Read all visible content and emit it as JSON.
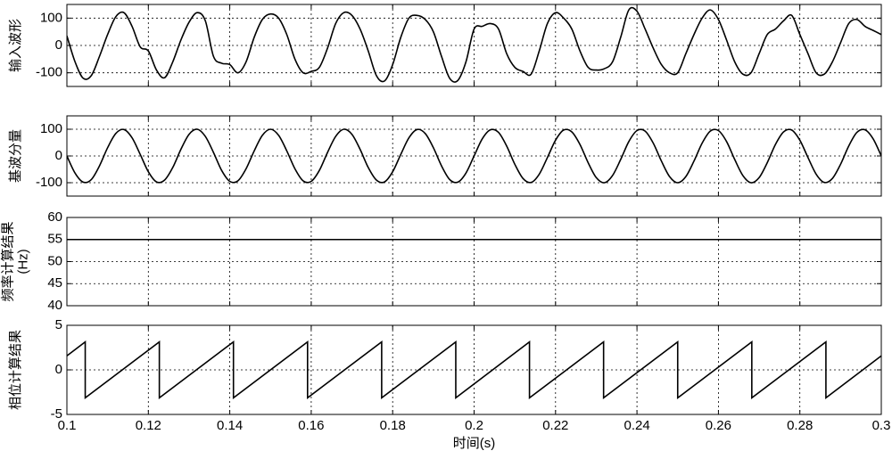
{
  "chart_data": [
    {
      "type": "line",
      "ylabel": [
        "输入波形"
      ],
      "color": "#000000",
      "grid": true,
      "xtick_labels": false,
      "xlim": [
        0.1,
        0.3
      ],
      "xticks": [
        0.1,
        0.12,
        0.14,
        0.16,
        0.18,
        0.2,
        0.22,
        0.24,
        0.26,
        0.28,
        0.3
      ],
      "ylim": [
        -150,
        150
      ],
      "yticks": [
        -100,
        0,
        100
      ],
      "x": [
        0.1,
        0.102,
        0.104,
        0.106,
        0.108,
        0.11,
        0.112,
        0.114,
        0.116,
        0.118,
        0.12,
        0.122,
        0.124,
        0.126,
        0.128,
        0.13,
        0.132,
        0.134,
        0.136,
        0.138,
        0.14,
        0.142,
        0.144,
        0.146,
        0.148,
        0.15,
        0.152,
        0.154,
        0.156,
        0.158,
        0.16,
        0.162,
        0.164,
        0.166,
        0.168,
        0.17,
        0.172,
        0.174,
        0.176,
        0.178,
        0.18,
        0.182,
        0.184,
        0.186,
        0.188,
        0.19,
        0.192,
        0.194,
        0.196,
        0.198,
        0.2,
        0.202,
        0.204,
        0.206,
        0.208,
        0.21,
        0.212,
        0.214,
        0.216,
        0.218,
        0.22,
        0.222,
        0.224,
        0.226,
        0.228,
        0.23,
        0.232,
        0.234,
        0.236,
        0.238,
        0.24,
        0.242,
        0.244,
        0.246,
        0.248,
        0.25,
        0.252,
        0.254,
        0.256,
        0.258,
        0.26,
        0.262,
        0.264,
        0.266,
        0.268,
        0.27,
        0.272,
        0.274,
        0.276,
        0.278,
        0.28,
        0.282,
        0.284,
        0.286,
        0.288,
        0.29,
        0.292,
        0.294,
        0.296,
        0.298,
        0.3
      ],
      "values": [
        35,
        -60,
        -120,
        -110,
        -40,
        40,
        105,
        120,
        70,
        -5,
        -20,
        -90,
        -118,
        -60,
        20,
        85,
        120,
        90,
        -40,
        -65,
        -70,
        -100,
        -60,
        30,
        95,
        115,
        100,
        40,
        -50,
        -100,
        -95,
        -80,
        -10,
        80,
        120,
        110,
        60,
        -20,
        -110,
        -130,
        -70,
        30,
        100,
        110,
        95,
        50,
        -40,
        -120,
        -128,
        -60,
        60,
        70,
        80,
        60,
        -30,
        -80,
        -95,
        -105,
        -20,
        80,
        120,
        100,
        60,
        -20,
        -80,
        -90,
        -85,
        -60,
        30,
        130,
        125,
        60,
        -10,
        -70,
        -100,
        -100,
        -30,
        40,
        100,
        130,
        95,
        20,
        -60,
        -105,
        -100,
        -30,
        40,
        60,
        90,
        110,
        40,
        -30,
        -100,
        -105,
        -60,
        10,
        80,
        95,
        70,
        55,
        40
      ]
    },
    {
      "type": "line",
      "ylabel": [
        "基波分量"
      ],
      "color": "#000000",
      "grid": true,
      "xtick_labels": false,
      "xlim": [
        0.1,
        0.3
      ],
      "xticks": [
        0.1,
        0.12,
        0.14,
        0.16,
        0.18,
        0.2,
        0.22,
        0.24,
        0.26,
        0.28,
        0.3
      ],
      "ylim": [
        -150,
        150
      ],
      "yticks": [
        -100,
        0,
        100
      ],
      "x": [
        0.1,
        0.102,
        0.104,
        0.106,
        0.108,
        0.11,
        0.112,
        0.114,
        0.116,
        0.118,
        0.12,
        0.122,
        0.124,
        0.126,
        0.128,
        0.13,
        0.132,
        0.134,
        0.136,
        0.138,
        0.14,
        0.142,
        0.144,
        0.146,
        0.148,
        0.15,
        0.152,
        0.154,
        0.156,
        0.158,
        0.16,
        0.162,
        0.164,
        0.166,
        0.168,
        0.17,
        0.172,
        0.174,
        0.176,
        0.178,
        0.18,
        0.182,
        0.184,
        0.186,
        0.188,
        0.19,
        0.192,
        0.194,
        0.196,
        0.198,
        0.2,
        0.202,
        0.204,
        0.206,
        0.208,
        0.21,
        0.212,
        0.214,
        0.216,
        0.218,
        0.22,
        0.222,
        0.224,
        0.226,
        0.228,
        0.23,
        0.232,
        0.234,
        0.236,
        0.238,
        0.24,
        0.242,
        0.244,
        0.246,
        0.248,
        0.25,
        0.252,
        0.254,
        0.256,
        0.258,
        0.26,
        0.262,
        0.264,
        0.266,
        0.268,
        0.27,
        0.272,
        0.274,
        0.276,
        0.278,
        0.28,
        0.282,
        0.284,
        0.286,
        0.288,
        0.29,
        0.292,
        0.294,
        0.296,
        0.298,
        0.3
      ],
      "values": [
        0,
        -64,
        -98,
        -88,
        -37,
        31,
        84,
        99,
        68,
        6,
        -59,
        -97,
        -90,
        -43,
        25,
        81,
        100,
        73,
        13,
        -54,
        -95,
        -93,
        -48,
        19,
        77,
        100,
        77,
        19,
        -48,
        -93,
        -95,
        -54,
        13,
        73,
        100,
        81,
        25,
        -43,
        -90,
        -97,
        -59,
        6,
        68,
        99,
        84,
        31,
        -37,
        -88,
        -98,
        -64,
        0,
        64,
        98,
        88,
        37,
        -31,
        -84,
        -99,
        -68,
        -6,
        59,
        97,
        90,
        43,
        -25,
        -81,
        -100,
        -73,
        -13,
        54,
        95,
        93,
        48,
        -19,
        -77,
        -100,
        -77,
        -19,
        48,
        93,
        95,
        54,
        -13,
        -73,
        -100,
        -81,
        -25,
        43,
        90,
        97,
        59,
        -6,
        -68,
        -99,
        -84,
        -31,
        37,
        88,
        98,
        64,
        0
      ]
    },
    {
      "type": "line",
      "ylabel": [
        "频率计算结果",
        "(Hz)"
      ],
      "color": "#000000",
      "grid": true,
      "xtick_labels": false,
      "xlim": [
        0.1,
        0.3
      ],
      "xticks": [
        0.1,
        0.12,
        0.14,
        0.16,
        0.18,
        0.2,
        0.22,
        0.24,
        0.26,
        0.28,
        0.3
      ],
      "ylim": [
        40,
        60
      ],
      "yticks": [
        40,
        45,
        50,
        55,
        60
      ],
      "x": [
        0.1,
        0.3
      ],
      "values": [
        55,
        55
      ]
    },
    {
      "type": "line",
      "ylabel": [
        "相位计算结果"
      ],
      "xlabel": "时间(s)",
      "color": "#000000",
      "grid": true,
      "xtick_labels": true,
      "xlim": [
        0.1,
        0.3
      ],
      "xticks": [
        0.1,
        0.12,
        0.14,
        0.16,
        0.18,
        0.2,
        0.22,
        0.24,
        0.26,
        0.28,
        0.3
      ],
      "ylim": [
        -5,
        5
      ],
      "yticks": [
        -5,
        0,
        5
      ],
      "x": [
        0.1,
        0.1045,
        0.1045,
        0.1227,
        0.1227,
        0.1409,
        0.1409,
        0.1591,
        0.1591,
        0.1773,
        0.1773,
        0.1955,
        0.1955,
        0.2136,
        0.2136,
        0.2318,
        0.2318,
        0.25,
        0.25,
        0.2682,
        0.2682,
        0.2864,
        0.2864,
        0.3
      ],
      "values": [
        1.57,
        3.14,
        -3.14,
        3.14,
        -3.14,
        3.14,
        -3.14,
        3.14,
        -3.14,
        3.14,
        -3.14,
        3.14,
        -3.14,
        3.14,
        -3.14,
        3.14,
        -3.14,
        3.14,
        -3.14,
        3.14,
        -3.14,
        3.14,
        -3.14,
        1.57
      ]
    }
  ]
}
